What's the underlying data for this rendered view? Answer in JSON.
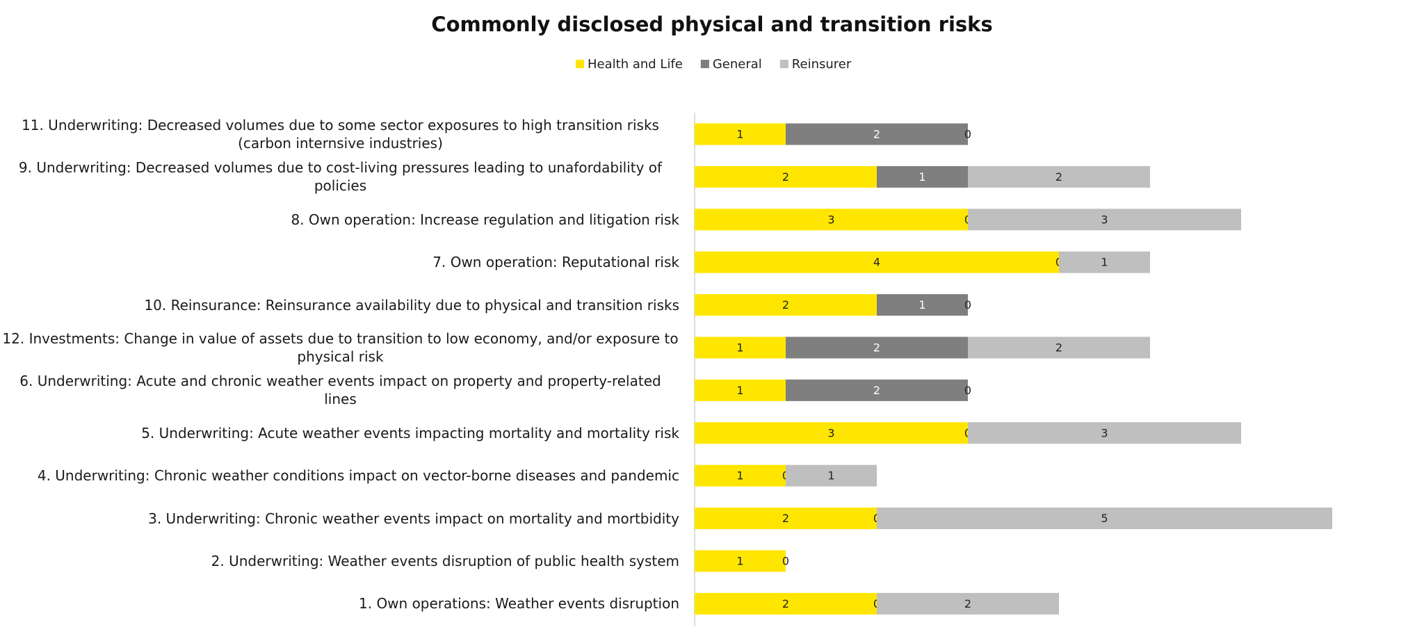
{
  "chart_data": {
    "type": "stacked-bar-horizontal",
    "title": "Commonly disclosed physical and transition risks",
    "categories": [
      "11. Underwriting: Decreased volumes due to some sector exposures to high transition risks (carbon internsive industries)",
      "9. Underwriting: Decreased  volumes due to cost-living pressures leading to unafordability of policies",
      "8. Own operation: Increase regulation and litigation risk",
      "7. Own operation: Reputational risk",
      "10. Reinsurance: Reinsurance availability due to physical and transition risks",
      "12. Investments: Change in value of assets due to transition to low economy, and/or exposure to physical risk",
      "6. Underwriting: Acute and chronic weather events impact on property and property-related lines",
      "5. Underwriting: Acute weather events impacting mortality and mortality risk",
      "4. Underwriting: Chronic weather conditions impact on vector-borne diseases and pandemic",
      "3. Underwriting: Chronic weather events impact on mortality and mortbidity",
      "2. Underwriting: Weather events disruption of public health system",
      "1. Own operations: Weather events disruption"
    ],
    "series": [
      {
        "name": "Health and Life",
        "color": "#ffe600",
        "values": [
          1,
          2,
          3,
          4,
          2,
          1,
          1,
          3,
          1,
          2,
          1,
          2
        ]
      },
      {
        "name": "General",
        "color": "#7f7f7f",
        "values": [
          2,
          1,
          0,
          0,
          1,
          2,
          2,
          0,
          0,
          0,
          0,
          0
        ]
      },
      {
        "name": "Reinsurer",
        "color": "#bfbfbf",
        "values": [
          0,
          2,
          3,
          1,
          0,
          2,
          0,
          3,
          1,
          5,
          null,
          2
        ]
      }
    ],
    "xlim": [
      0,
      7
    ]
  }
}
